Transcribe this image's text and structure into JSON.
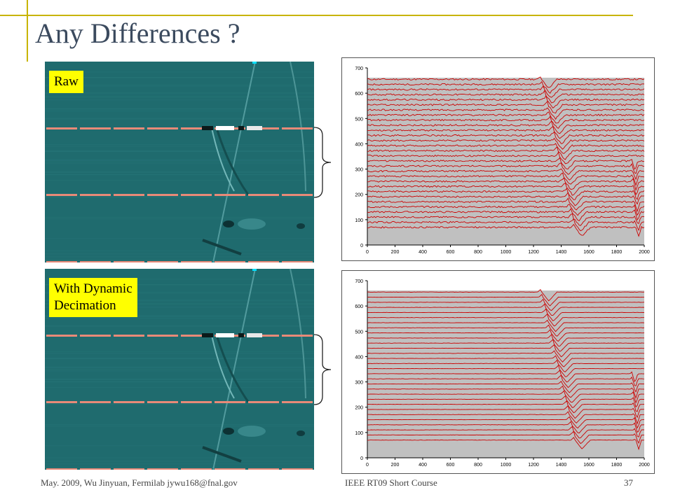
{
  "slide": {
    "title": "Any Differences ?",
    "footer_left": "May. 2009, Wu Jinyuan, Fermilab jywu168@fnal.gov",
    "footer_center": "IEEE RT09 Short Course",
    "page_number": "37"
  },
  "panels": [
    {
      "label": "Raw"
    },
    {
      "label_line1": "With Dynamic",
      "label_line2": "Decimation"
    }
  ],
  "colors": {
    "accent_frame": "#c8b400",
    "trace": "#cc0000",
    "plot_bg": "#c0c0c0",
    "image_bg": "#1f6b6e",
    "label_bg": "#ffff00"
  },
  "chart_data": [
    {
      "type": "line",
      "title": "",
      "xlabel": "",
      "ylabel": "",
      "xlim": [
        0,
        2000
      ],
      "ylim": [
        0,
        700
      ],
      "x_ticks": [
        0,
        200,
        400,
        600,
        800,
        1000,
        1200,
        1400,
        1600,
        1800,
        2000
      ],
      "y_ticks": [
        0,
        100,
        200,
        300,
        400,
        500,
        600,
        700
      ],
      "series_count": 30,
      "baseline_min": 70,
      "baseline_max": 655,
      "pulse_start_x": 1260,
      "pulse_end_x": 1500,
      "second_pulse_x": 1880,
      "noise": "high"
    },
    {
      "type": "line",
      "title": "",
      "xlabel": "",
      "ylabel": "",
      "xlim": [
        0,
        2000
      ],
      "ylim": [
        0,
        700
      ],
      "x_ticks": [
        0,
        200,
        400,
        600,
        800,
        1000,
        1200,
        1400,
        1600,
        1800,
        2000
      ],
      "y_ticks": [
        0,
        100,
        200,
        300,
        400,
        500,
        600,
        700
      ],
      "series_count": 30,
      "baseline_min": 70,
      "baseline_max": 655,
      "pulse_start_x": 1260,
      "pulse_end_x": 1500,
      "second_pulse_x": 1880,
      "noise": "low"
    }
  ]
}
